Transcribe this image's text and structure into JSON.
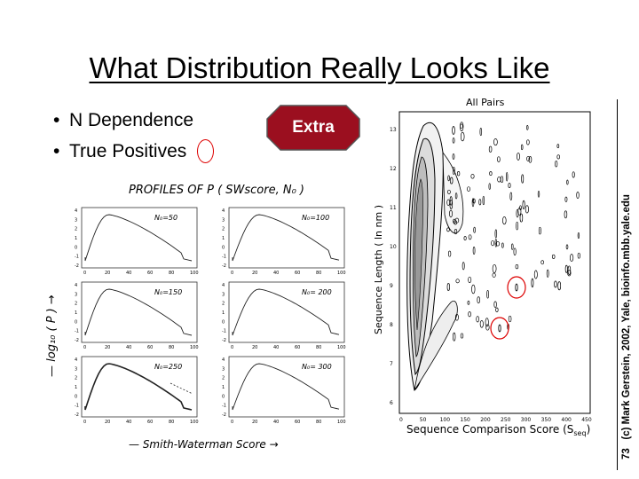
{
  "slide": {
    "title": "What Distribution Really Looks Like",
    "bullets": [
      "N Dependence",
      "True Positives"
    ],
    "badge": "Extra",
    "page_number": "73",
    "copyright": "(c) Mark Gerstein, 2002, Yale, bioinfo.mbb.yale.edu"
  },
  "profiles": {
    "heading": "PROFILES   OF   P ( SWscore, N₀ )",
    "ylabel": "— log₁₀ ( P )  →",
    "xlabel": "— Smith-Waterman  Score  →",
    "panels": [
      "N₀=50",
      "N₀=100",
      "N₀=150",
      "N₀= 200",
      "N₀=250",
      "N₀= 300"
    ],
    "x_ticks": [
      "0",
      "20",
      "40",
      "60",
      "80",
      "100"
    ],
    "y_ticks": [
      "4",
      "3",
      "2",
      "1",
      "0",
      "-1",
      "-2"
    ]
  },
  "contour": {
    "title": "All Pairs",
    "ylabel": "Sequence Length ( ln nm )",
    "xlabel": "Sequence Comparison Score (S",
    "xlabel_sub": "seq",
    "xlabel_end": ")",
    "x_ticks": [
      "0",
      "50",
      "100",
      "150",
      "200",
      "250",
      "300",
      "350",
      "400",
      "450"
    ],
    "y_ticks": [
      "13",
      "12",
      "11",
      "10",
      "9",
      "8",
      "7",
      "6"
    ]
  }
}
